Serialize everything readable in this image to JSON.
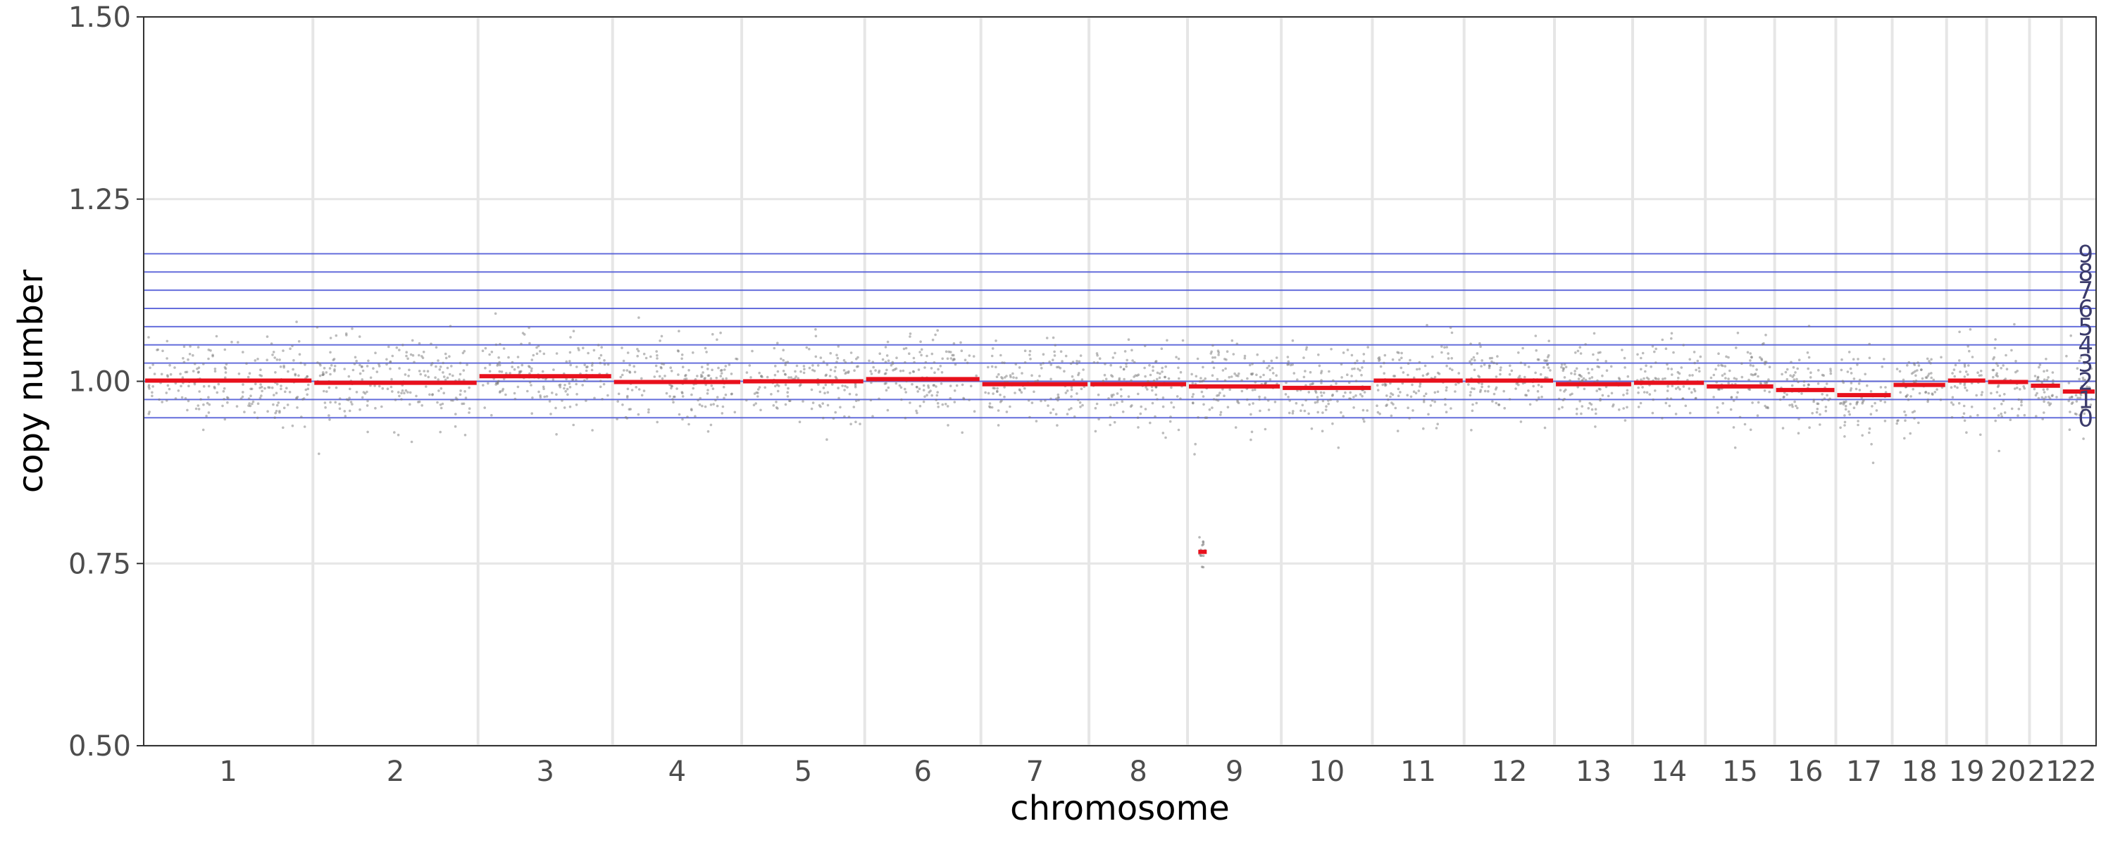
{
  "chart_data": {
    "type": "scatter",
    "title": "",
    "xlabel": "chromosome",
    "ylabel": "copy number",
    "ylim": [
      0.5,
      1.5
    ],
    "yticks": [
      0.5,
      0.75,
      1.0,
      1.25,
      1.5
    ],
    "ytick_labels": [
      "0.50",
      "0.75",
      "1.00",
      "1.25",
      "1.50"
    ],
    "grid": true,
    "chromosomes": [
      "1",
      "2",
      "3",
      "4",
      "5",
      "6",
      "7",
      "8",
      "9",
      "10",
      "11",
      "12",
      "13",
      "14",
      "15",
      "16",
      "17",
      "18",
      "19",
      "20",
      "21",
      "22"
    ],
    "chromosome_relative_widths": [
      249,
      243,
      198,
      190,
      181,
      171,
      159,
      145,
      138,
      134,
      135,
      133,
      115,
      107,
      102,
      90,
      83,
      80,
      59,
      63,
      47,
      51
    ],
    "segments": [
      {
        "chromosome": "1",
        "value": 1.001
      },
      {
        "chromosome": "2",
        "value": 0.998
      },
      {
        "chromosome": "3",
        "value": 1.007
      },
      {
        "chromosome": "4",
        "value": 0.999
      },
      {
        "chromosome": "5",
        "value": 1.0
      },
      {
        "chromosome": "6",
        "value": 1.003
      },
      {
        "chromosome": "7",
        "value": 0.996
      },
      {
        "chromosome": "8",
        "value": 0.996
      },
      {
        "chromosome": "9",
        "value": 0.993,
        "focal": {
          "value": 0.766
        }
      },
      {
        "chromosome": "10",
        "value": 0.991
      },
      {
        "chromosome": "11",
        "value": 1.001
      },
      {
        "chromosome": "12",
        "value": 1.001
      },
      {
        "chromosome": "13",
        "value": 0.996
      },
      {
        "chromosome": "14",
        "value": 0.998
      },
      {
        "chromosome": "15",
        "value": 0.993
      },
      {
        "chromosome": "16",
        "value": 0.988
      },
      {
        "chromosome": "17",
        "value": 0.981
      },
      {
        "chromosome": "18",
        "value": 0.995
      },
      {
        "chromosome": "19",
        "value": 1.001
      },
      {
        "chromosome": "20",
        "value": 0.999
      },
      {
        "chromosome": "21",
        "value": 0.994
      },
      {
        "chromosome": "22",
        "value": 0.986
      }
    ],
    "reference_lines": [
      {
        "label": "0",
        "value": 0.95
      },
      {
        "label": "1",
        "value": 0.975
      },
      {
        "label": "2",
        "value": 1.0
      },
      {
        "label": "3",
        "value": 1.025
      },
      {
        "label": "4",
        "value": 1.05
      },
      {
        "label": "5",
        "value": 1.075
      },
      {
        "label": "6",
        "value": 1.1
      },
      {
        "label": "7",
        "value": 1.125
      },
      {
        "label": "8",
        "value": 1.15
      },
      {
        "label": "9",
        "value": 1.175
      }
    ],
    "bin_noise_sd": 0.028,
    "colors": {
      "points": "#7a7a7a",
      "segments": "#e8101c",
      "reference_lines": "#4a55d6",
      "gridlines": "#e6e6e6",
      "axis": "#333333"
    }
  }
}
